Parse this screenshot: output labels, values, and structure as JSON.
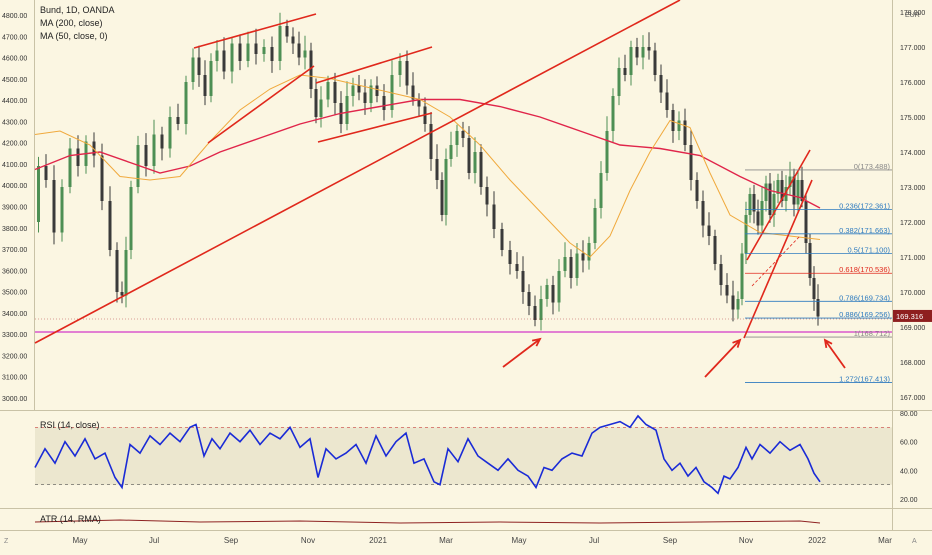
{
  "legend": {
    "title": "Bund, 1D, OANDA",
    "ma200": "MA (200, close)",
    "ma50": "MA (50, close, 0)"
  },
  "currency": "EUR",
  "left_axis_labels": [
    "4800.00",
    "4700.00",
    "4600.00",
    "4500.00",
    "4400.00",
    "4300.00",
    "4200.00",
    "4100.00",
    "4000.00",
    "3900.00",
    "3800.00",
    "3700.00",
    "3600.00",
    "3500.00",
    "3400.00",
    "3300.00",
    "3200.00",
    "3100.00",
    "3000.00"
  ],
  "right_axis_labels": [
    "178.000",
    "177.000",
    "176.000",
    "175.000",
    "174.000",
    "173.000",
    "172.000",
    "171.000",
    "170.000",
    "169.000",
    "168.000",
    "167.000"
  ],
  "time_labels": [
    "May",
    "Jul",
    "Sep",
    "Nov",
    "2021",
    "Mar",
    "May",
    "Jul",
    "Sep",
    "Nov",
    "2022",
    "Mar"
  ],
  "last_price": "169.316",
  "rsi_label": "RSI (14, close)",
  "rsi_axis_labels": [
    "80.00",
    "60.00",
    "40.00",
    "20.00"
  ],
  "atr_label": "ATR (14, RMA)",
  "fib_levels": [
    {
      "label": "0(173.488)",
      "price": 173.488,
      "color": "#888888"
    },
    {
      "label": "0.236(172.361)",
      "price": 172.361,
      "color": "#2e7bbf"
    },
    {
      "label": "0.382(171.663)",
      "price": 171.663,
      "color": "#2e7bbf"
    },
    {
      "label": "0.5(171.100)",
      "price": 171.1,
      "color": "#2e7bbf"
    },
    {
      "label": "0.618(170.536)",
      "price": 170.536,
      "color": "#e0281c"
    },
    {
      "label": "0.786(169.734)",
      "price": 169.734,
      "color": "#2e7bbf"
    },
    {
      "label": "0.886(169.256)",
      "price": 169.256,
      "color": "#2e7bbf"
    },
    {
      "label": "1(168.712)",
      "price": 168.712,
      "color": "#888888"
    },
    {
      "label": "1.272(167.413)",
      "price": 167.413,
      "color": "#2e7bbf"
    }
  ],
  "colors": {
    "background": "#fbf6e2",
    "up_candle": "#4d8f54",
    "down_candle": "#3a3a3a",
    "ma200": "#e0254a",
    "ma50": "#f0a93c",
    "trendline": "#e0281c",
    "support": "#d438c9",
    "rsi": "#1a2bd6",
    "last_price_tag": "#8e1f1f"
  },
  "chart_data": {
    "type": "line",
    "title": "Bund, 1D, OANDA",
    "xlabel": "",
    "ylabel": "EUR",
    "ylim": [
      166.5,
      178.5
    ],
    "x": [
      "Apr 2020",
      "May 2020",
      "Jun 2020",
      "Jul 2020",
      "Aug 2020",
      "Sep 2020",
      "Oct 2020",
      "Nov 2020",
      "Dec 2020",
      "Jan 2021",
      "Feb 2021",
      "Mar 2021",
      "Apr 2021",
      "May 2021",
      "Jun 2021",
      "Jul 2021",
      "Aug 2021",
      "Sep 2021",
      "Oct 2021",
      "Nov 2021",
      "Dec 2021",
      "Jan 2022"
    ],
    "series": [
      {
        "name": "Bund",
        "values": [
          172.2,
          173.4,
          170.6,
          173.7,
          176.3,
          176.7,
          177.4,
          176.2,
          175.6,
          175.3,
          174.2,
          172.3,
          171.2,
          169.2,
          170.2,
          174.6,
          176.6,
          175.8,
          172.8,
          169.3,
          172.7,
          169.3
        ]
      },
      {
        "name": "MA (200, close)",
        "values": [
          173.4,
          173.6,
          173.6,
          173.4,
          173.5,
          173.9,
          174.3,
          174.8,
          175.0,
          175.3,
          175.3,
          175.2,
          175.0,
          174.5,
          174.1,
          173.9,
          173.8,
          173.7,
          173.5,
          173.2,
          172.9,
          172.5
        ]
      },
      {
        "name": "MA (50, close, 0)",
        "values": [
          174.5,
          174.5,
          173.1,
          173.1,
          174.6,
          175.6,
          176.3,
          176.3,
          176.0,
          175.7,
          175.1,
          174.0,
          172.5,
          171.0,
          170.5,
          171.1,
          172.5,
          174.8,
          174.8,
          172.2,
          171.3,
          171.4
        ]
      }
    ],
    "rsi": {
      "name": "RSI (14, close)",
      "ylim": [
        20,
        80
      ],
      "values": [
        42,
        55,
        28,
        62,
        70,
        58,
        65,
        40,
        55,
        50,
        38,
        45,
        40,
        30,
        50,
        68,
        75,
        48,
        30,
        42,
        58,
        32
      ]
    },
    "fibonacci": [
      0,
      0.236,
      0.382,
      0.5,
      0.618,
      0.786,
      0.886,
      1,
      1.272
    ],
    "grid": false
  }
}
